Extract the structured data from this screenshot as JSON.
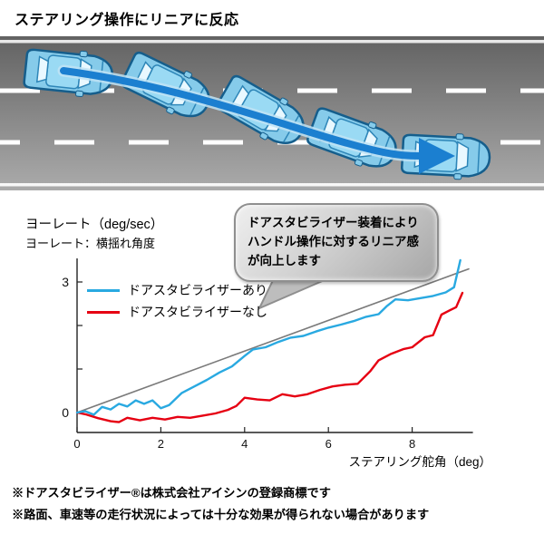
{
  "title": "ステアリング操作にリニアに反応",
  "callout": {
    "lines": [
      "ドアスタビライザー装着により",
      "ハンドル操作に対するリニア感",
      "が向上します"
    ]
  },
  "chart_data": {
    "type": "line",
    "title": "",
    "xlabel": "ステアリング舵角（deg）",
    "ylabel": "ヨーレート（deg/sec）",
    "ylabel_note": "ヨーレート：横揺れ角度",
    "xlim": [
      0,
      9.45
    ],
    "ylim": [
      -0.5,
      3.55
    ],
    "xticks": [
      0,
      2,
      4,
      6,
      8
    ],
    "yticks": [
      0,
      1,
      2,
      3
    ],
    "ytick_labeled": [
      0,
      3
    ],
    "grid": false,
    "legend_position": "top-left-inside",
    "series": [
      {
        "name": "ドアスタビライザーあり",
        "color": "#29A9E1",
        "line_width": 2.4,
        "in_legend": true,
        "points": [
          [
            0,
            0
          ],
          [
            0.2,
            0.03
          ],
          [
            0.4,
            -0.05
          ],
          [
            0.6,
            0.13
          ],
          [
            0.8,
            0.07
          ],
          [
            1.0,
            0.2
          ],
          [
            1.2,
            0.14
          ],
          [
            1.4,
            0.28
          ],
          [
            1.6,
            0.2
          ],
          [
            1.8,
            0.28
          ],
          [
            2.0,
            0.1
          ],
          [
            2.2,
            0.17
          ],
          [
            2.5,
            0.45
          ],
          [
            2.8,
            0.6
          ],
          [
            3.1,
            0.75
          ],
          [
            3.4,
            0.92
          ],
          [
            3.7,
            1.06
          ],
          [
            4.0,
            1.3
          ],
          [
            4.2,
            1.45
          ],
          [
            4.5,
            1.5
          ],
          [
            4.8,
            1.62
          ],
          [
            5.1,
            1.72
          ],
          [
            5.4,
            1.76
          ],
          [
            5.7,
            1.86
          ],
          [
            6.0,
            1.95
          ],
          [
            6.3,
            2.02
          ],
          [
            6.6,
            2.1
          ],
          [
            6.9,
            2.2
          ],
          [
            7.2,
            2.26
          ],
          [
            7.4,
            2.45
          ],
          [
            7.6,
            2.6
          ],
          [
            7.9,
            2.58
          ],
          [
            8.2,
            2.63
          ],
          [
            8.5,
            2.68
          ],
          [
            8.8,
            2.76
          ],
          [
            9.0,
            2.88
          ],
          [
            9.15,
            3.5
          ]
        ]
      },
      {
        "name": "ドアスタビライザーなし",
        "color": "#E60012",
        "line_width": 2.4,
        "in_legend": true,
        "points": [
          [
            0,
            0
          ],
          [
            0.2,
            -0.04
          ],
          [
            0.5,
            -0.13
          ],
          [
            0.8,
            -0.2
          ],
          [
            1.0,
            -0.22
          ],
          [
            1.2,
            -0.12
          ],
          [
            1.5,
            -0.18
          ],
          [
            1.8,
            -0.12
          ],
          [
            2.1,
            -0.16
          ],
          [
            2.4,
            -0.1
          ],
          [
            2.7,
            -0.12
          ],
          [
            3.0,
            -0.07
          ],
          [
            3.3,
            -0.02
          ],
          [
            3.6,
            0.06
          ],
          [
            3.8,
            0.15
          ],
          [
            4.0,
            0.34
          ],
          [
            4.3,
            0.3
          ],
          [
            4.6,
            0.28
          ],
          [
            4.9,
            0.42
          ],
          [
            5.2,
            0.37
          ],
          [
            5.5,
            0.42
          ],
          [
            5.8,
            0.52
          ],
          [
            6.1,
            0.6
          ],
          [
            6.4,
            0.64
          ],
          [
            6.7,
            0.66
          ],
          [
            7.0,
            0.95
          ],
          [
            7.2,
            1.2
          ],
          [
            7.5,
            1.35
          ],
          [
            7.8,
            1.46
          ],
          [
            8.0,
            1.5
          ],
          [
            8.3,
            1.73
          ],
          [
            8.5,
            1.78
          ],
          [
            8.7,
            2.25
          ],
          [
            8.9,
            2.35
          ],
          [
            9.05,
            2.42
          ],
          [
            9.2,
            2.75
          ]
        ]
      },
      {
        "name": "reference",
        "color": "#7A7A7A",
        "line_width": 1.6,
        "in_legend": false,
        "points": [
          [
            0,
            0
          ],
          [
            9.35,
            3.3
          ]
        ]
      }
    ]
  },
  "footnotes": [
    "※ドアスタビライザー®は株式会社アイシンの登録商標です",
    "※路面、車速等の走行状況によっては十分な効果が得られない場合があります"
  ]
}
